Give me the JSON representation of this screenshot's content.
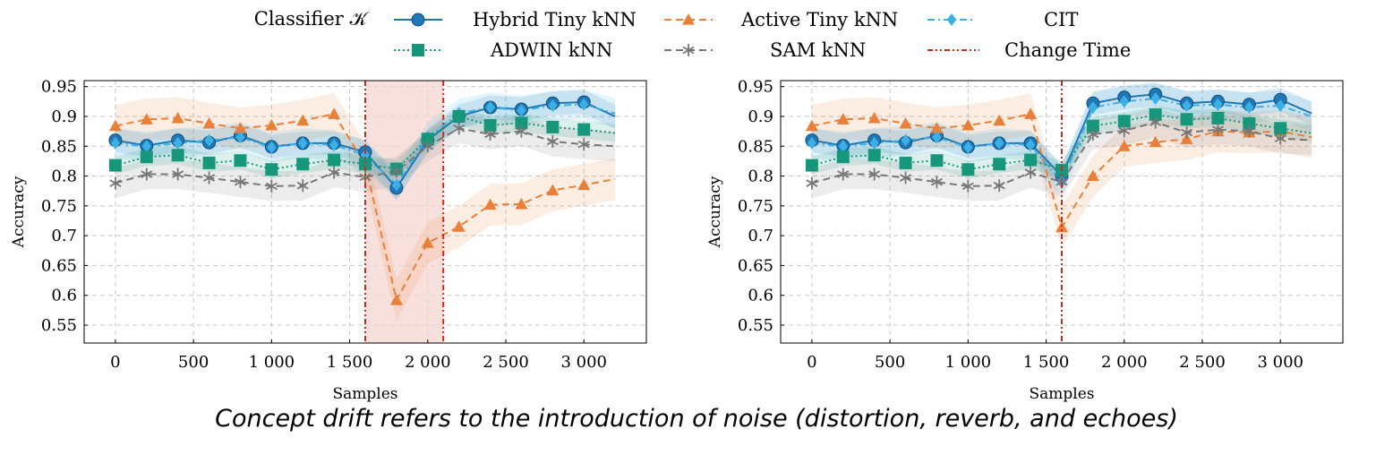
{
  "legend": {
    "header": "Classifier 𝒦",
    "entries": [
      {
        "name": "Hybrid Tiny kNN",
        "key": "hybrid"
      },
      {
        "name": "Active Tiny kNN",
        "key": "active"
      },
      {
        "name": "CIT",
        "key": "cit"
      },
      {
        "name": "ADWIN kNN",
        "key": "adwin"
      },
      {
        "name": "SAM kNN",
        "key": "sam"
      },
      {
        "name": "Change Time",
        "key": "change"
      }
    ]
  },
  "styles": {
    "hybrid": {
      "color": "#1f77b4",
      "marker": "circle",
      "dash": ""
    },
    "active": {
      "color": "#e8803a",
      "marker": "triangle",
      "dash": "8,5"
    },
    "cit": {
      "color": "#3cb0e6",
      "marker": "diamond",
      "dash": "8,4,2,4"
    },
    "adwin": {
      "color": "#16967a",
      "marker": "square",
      "dash": "2,3"
    },
    "sam": {
      "color": "#777777",
      "marker": "star",
      "dash": "8,5"
    },
    "change": {
      "color": "#cc2a1a",
      "dash": "6,3,2,3,2,3"
    }
  },
  "caption": "Concept drift refers to the introduction of noise (distortion, reverb, and echoes)",
  "chart_data": [
    {
      "type": "line",
      "xlabel": "Samples",
      "ylabel": "Accuracy",
      "xlim": [
        -200,
        3400
      ],
      "ylim": [
        0.52,
        0.96
      ],
      "xticks": [
        0,
        500,
        1000,
        1500,
        2000,
        2500,
        3000
      ],
      "xtick_labels": [
        "0",
        "500",
        "1 000",
        "1 500",
        "2 000",
        "2 500",
        "3 000"
      ],
      "yticks": [
        0.55,
        0.6,
        0.65,
        0.7,
        0.75,
        0.8,
        0.85,
        0.9,
        0.95
      ],
      "ytick_labels": [
        "0.55",
        "0.6",
        "0.65",
        "0.7",
        "0.75",
        "0.8",
        "0.85",
        "0.9",
        "0.95"
      ],
      "grid": true,
      "change_region": [
        1600,
        2100
      ],
      "x": [
        0,
        200,
        400,
        600,
        800,
        1000,
        1200,
        1400,
        1600,
        1800,
        2000,
        2200,
        2400,
        2600,
        2800,
        3000,
        3200
      ],
      "series": [
        {
          "name": "Hybrid Tiny kNN",
          "key": "hybrid",
          "band": 0.02,
          "values": [
            0.86,
            0.851,
            0.86,
            0.856,
            0.868,
            0.849,
            0.855,
            0.855,
            0.84,
            0.78,
            0.86,
            0.9,
            0.915,
            0.912,
            0.922,
            0.924,
            0.9
          ]
        },
        {
          "name": "Active Tiny kNN",
          "key": "active",
          "band": 0.035,
          "values": [
            0.884,
            0.895,
            0.897,
            0.888,
            0.88,
            0.885,
            0.893,
            0.904,
            0.82,
            0.592,
            0.688,
            0.715,
            0.752,
            0.753,
            0.776,
            0.785,
            0.795
          ]
        },
        {
          "name": "CIT",
          "key": "cit",
          "band": 0.025,
          "values": [
            0.855,
            0.85,
            0.855,
            0.86,
            0.865,
            0.848,
            0.855,
            0.852,
            0.835,
            0.785,
            0.865,
            0.905,
            0.915,
            0.91,
            0.918,
            0.92,
            0.905
          ]
        },
        {
          "name": "ADWIN kNN",
          "key": "adwin",
          "band": 0.015,
          "values": [
            0.818,
            0.832,
            0.835,
            0.822,
            0.826,
            0.811,
            0.82,
            0.827,
            0.82,
            0.812,
            0.862,
            0.9,
            0.885,
            0.889,
            0.882,
            0.878,
            0.872
          ]
        },
        {
          "name": "SAM kNN",
          "key": "sam",
          "band": 0.025,
          "values": [
            0.788,
            0.803,
            0.803,
            0.797,
            0.79,
            0.783,
            0.784,
            0.806,
            0.798,
            0.808,
            0.85,
            0.88,
            0.87,
            0.875,
            0.858,
            0.853,
            0.85
          ]
        }
      ]
    },
    {
      "type": "line",
      "xlabel": "Samples",
      "ylabel": "Accuracy",
      "xlim": [
        -200,
        3400
      ],
      "ylim": [
        0.52,
        0.96
      ],
      "xticks": [
        0,
        500,
        1000,
        1500,
        2000,
        2500,
        3000
      ],
      "xtick_labels": [
        "0",
        "500",
        "1 000",
        "1 500",
        "2 000",
        "2 500",
        "3 000"
      ],
      "yticks": [
        0.55,
        0.6,
        0.65,
        0.7,
        0.75,
        0.8,
        0.85,
        0.9,
        0.95
      ],
      "ytick_labels": [
        "0.55",
        "0.6",
        "0.65",
        "0.7",
        "0.75",
        "0.8",
        "0.85",
        "0.9",
        "0.95"
      ],
      "grid": true,
      "change_line": 1600,
      "x": [
        0,
        200,
        400,
        600,
        800,
        1000,
        1200,
        1400,
        1600,
        1800,
        2000,
        2200,
        2400,
        2600,
        2800,
        3000,
        3200
      ],
      "series": [
        {
          "name": "Hybrid Tiny kNN",
          "key": "hybrid",
          "band": 0.02,
          "values": [
            0.86,
            0.851,
            0.86,
            0.856,
            0.868,
            0.849,
            0.855,
            0.855,
            0.8,
            0.922,
            0.932,
            0.937,
            0.922,
            0.925,
            0.92,
            0.928,
            0.905
          ]
        },
        {
          "name": "Active Tiny kNN",
          "key": "active",
          "band": 0.035,
          "values": [
            0.884,
            0.895,
            0.897,
            0.888,
            0.88,
            0.885,
            0.893,
            0.904,
            0.714,
            0.8,
            0.85,
            0.857,
            0.862,
            0.875,
            0.873,
            0.875,
            0.865
          ]
        },
        {
          "name": "CIT",
          "key": "cit",
          "band": 0.025,
          "values": [
            0.855,
            0.85,
            0.855,
            0.86,
            0.865,
            0.848,
            0.855,
            0.852,
            0.79,
            0.915,
            0.925,
            0.93,
            0.918,
            0.92,
            0.915,
            0.918,
            0.9
          ]
        },
        {
          "name": "ADWIN kNN",
          "key": "adwin",
          "band": 0.015,
          "values": [
            0.818,
            0.832,
            0.835,
            0.822,
            0.826,
            0.811,
            0.82,
            0.827,
            0.81,
            0.884,
            0.892,
            0.903,
            0.895,
            0.897,
            0.888,
            0.88,
            0.872
          ]
        },
        {
          "name": "SAM kNN",
          "key": "sam",
          "band": 0.025,
          "values": [
            0.788,
            0.803,
            0.803,
            0.797,
            0.79,
            0.783,
            0.784,
            0.806,
            0.79,
            0.87,
            0.876,
            0.89,
            0.873,
            0.878,
            0.875,
            0.863,
            0.86
          ]
        }
      ]
    }
  ]
}
